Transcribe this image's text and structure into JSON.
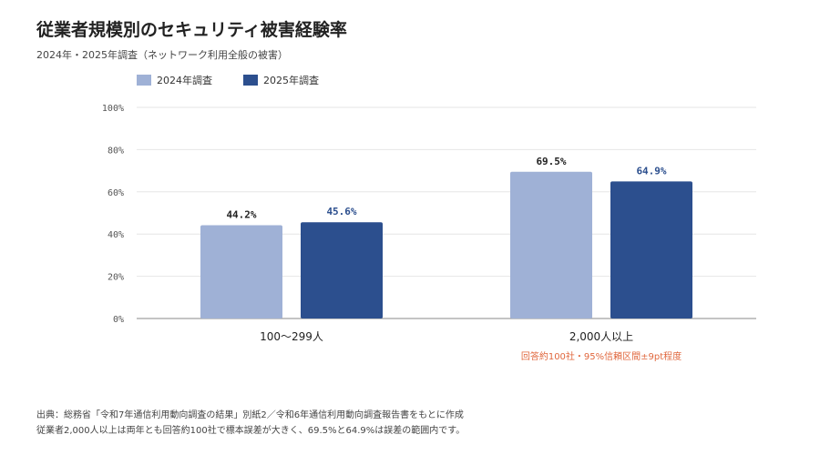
{
  "header": {
    "title": "従業者規模別のセキュリティ被害経験率",
    "subtitle": "2024年・2025年調査（ネットワーク利用全般の被害）"
  },
  "colors": {
    "series_2024": "#9fb1d6",
    "series_2025": "#2c4f8e",
    "label_2024": "#222222",
    "label_2025": "#2c4f8e",
    "annotation": "#e0673d",
    "grid": "#e6e6e6",
    "axis": "#888888"
  },
  "chart_data": {
    "type": "bar",
    "title": "従業者規模別のセキュリティ被害経験率",
    "subtitle": "2024年・2025年調査（ネットワーク利用全般の被害）",
    "categories": [
      "100〜299人",
      "2,000人以上"
    ],
    "series": [
      {
        "name": "2024年調査",
        "values": [
          44.2,
          69.5
        ],
        "labels": [
          "44.2%",
          "69.5%"
        ]
      },
      {
        "name": "2025年調査",
        "values": [
          45.6,
          64.9
        ],
        "labels": [
          "45.6%",
          "64.9%"
        ]
      }
    ],
    "ylim": [
      0,
      100
    ],
    "yticks": [
      0,
      20,
      40,
      60,
      80,
      100
    ],
    "ytick_labels": [
      "0%",
      "20%",
      "40%",
      "60%",
      "80%",
      "100%"
    ],
    "xlabel": "",
    "ylabel": "",
    "grid": true,
    "legend_position": "top-left",
    "annotations": [
      {
        "category": "2,000人以上",
        "text": "回答約100社・95%信頼区間±9pt程度"
      }
    ]
  },
  "footer": {
    "source": "出典：総務省「令和7年通信利用動向調査の結果」別紙2／令和6年通信利用動向調査報告書をもとに作成",
    "note": "従業者2,000人以上は両年とも回答約100社で標本誤差が大きく、69.5%と64.9%は誤差の範囲内です。"
  }
}
